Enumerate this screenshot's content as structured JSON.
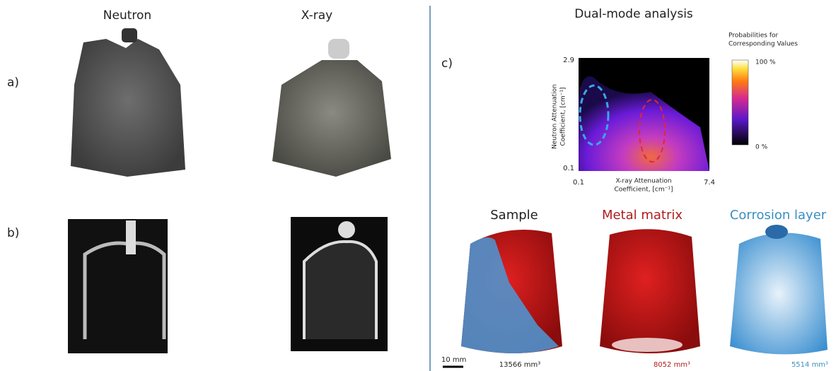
{
  "header": {
    "left": [
      "Neutron",
      "X-ray"
    ],
    "right": "Dual-mode analysis"
  },
  "panels": {
    "a": "a)",
    "b": "b)",
    "c": "c)"
  },
  "heatmap": {
    "y_top": "2.9",
    "y_bottom": "0.1",
    "x_left": "0.1",
    "x_right": "7.4",
    "y_label": [
      "Neutron Attenuation",
      "Coefficient, [cm⁻¹]"
    ],
    "x_label": [
      "X-ray Attenuation",
      "Coefficient, [cm⁻¹]"
    ],
    "colorbar_title": [
      "Probabilities for",
      "Corresponding Values"
    ],
    "colorbar_max": "100 %",
    "colorbar_min": "0 %"
  },
  "renders": [
    {
      "title": "Sample",
      "volume": "13566 mm³"
    },
    {
      "title": "Metal matrix",
      "volume": "8052 mm³"
    },
    {
      "title": "Corrosion layer",
      "volume": "5514 mm³"
    }
  ],
  "scale_bar": "10 mm"
}
